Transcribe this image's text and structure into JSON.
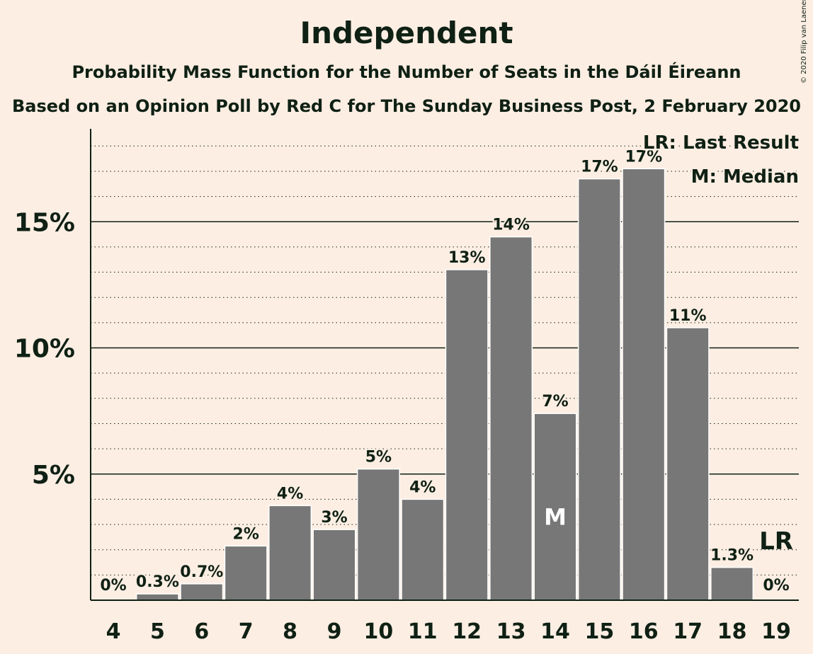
{
  "chart_data": {
    "type": "bar",
    "title": "Independent",
    "subtitle": "Probability Mass Function for the Number of Seats in the Dáil Éireann",
    "subtitle2": "Based on an Opinion Poll by Red C for The Sunday Business Post, 2 February 2020",
    "copyright": "© 2020 Filip van Laenen",
    "categories": [
      "4",
      "5",
      "6",
      "7",
      "8",
      "9",
      "10",
      "11",
      "12",
      "13",
      "14",
      "15",
      "16",
      "17",
      "18",
      "19"
    ],
    "values": [
      0,
      0.25,
      0.65,
      2.15,
      3.75,
      2.8,
      5.2,
      4.0,
      13.1,
      14.4,
      7.4,
      16.7,
      17.1,
      10.8,
      1.3,
      0
    ],
    "data_labels": [
      "0%",
      "0.3%",
      "0.7%",
      "2%",
      "4%",
      "3%",
      "5%",
      "4%",
      "13%",
      "14%",
      "7%",
      "17%",
      "17%",
      "11%",
      "1.3%",
      "0%"
    ],
    "ylim": [
      0,
      18.7
    ],
    "yticks": [
      5,
      10,
      15
    ],
    "ytick_labels": [
      "5%",
      "10%",
      "15%"
    ],
    "minor_grid_step": 1,
    "bar_color": "#777777",
    "background_color": "#fdeee3",
    "text_color": "#0f2014",
    "median_category": "14",
    "median_label": "M",
    "last_result_category": "19",
    "last_result_label": "LR",
    "legend": [
      "LR: Last Result",
      "M: Median"
    ],
    "legend_position": "top-right"
  }
}
